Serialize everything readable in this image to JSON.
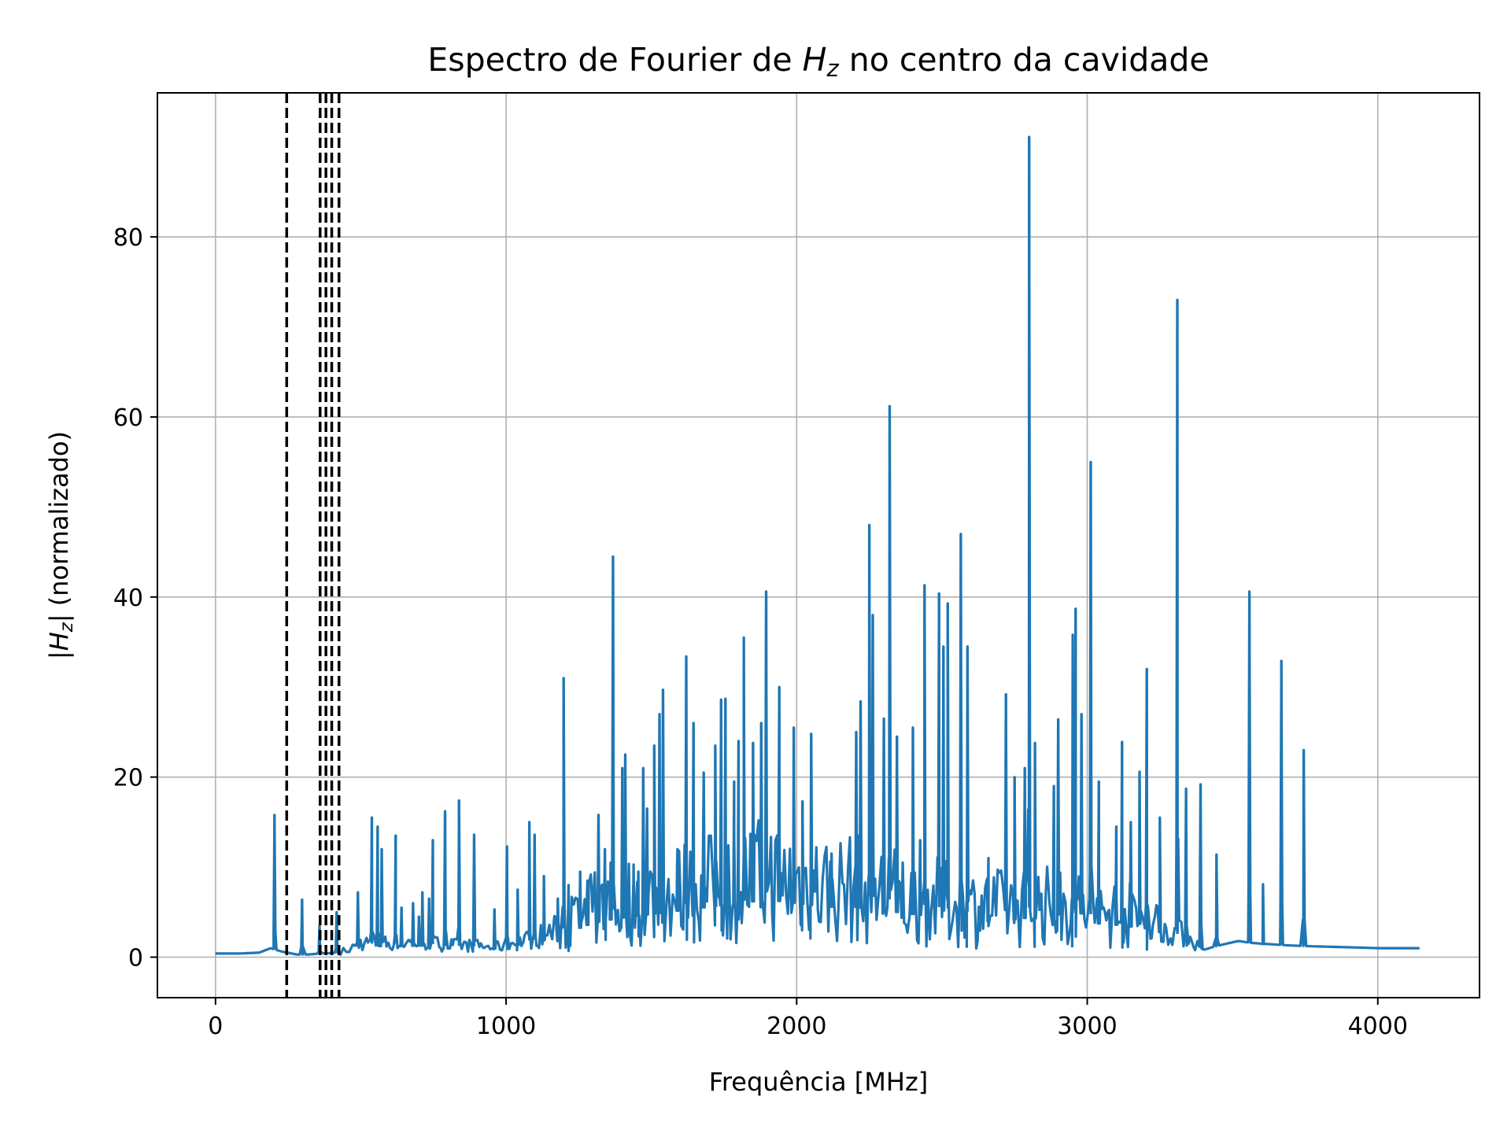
{
  "chart_data": {
    "type": "line",
    "title": "Espectro de Fourier de Hz no centro da cavidade",
    "title_parts": {
      "before": "Espectro de Fourier de ",
      "symbol": "H",
      "subscript": "z",
      "after": " no centro da cavidade"
    },
    "xlabel": "Frequência [MHz]",
    "ylabel": "|Hz| (normalizado)",
    "ylabel_parts": {
      "before": "|",
      "symbol": "H",
      "subscript": "z",
      "after": "| (normalizado)"
    },
    "xlim": [
      -200,
      4350
    ],
    "ylim": [
      -4.5,
      96
    ],
    "xticks": [
      0,
      1000,
      2000,
      3000,
      4000
    ],
    "yticks": [
      0,
      20,
      40,
      60,
      80
    ],
    "grid": true,
    "line_color": "#1f77b4",
    "vline_color": "#000000",
    "vlines": [
      245,
      360,
      380,
      400,
      425
    ],
    "series": [
      {
        "baseline": [
          [
            0,
            0.4
          ],
          [
            80,
            0.4
          ],
          [
            150,
            0.5
          ],
          [
            190,
            1.0
          ],
          [
            230,
            0.6
          ],
          [
            280,
            0.3
          ],
          [
            320,
            0.3
          ],
          [
            360,
            0.4
          ],
          [
            420,
            0.5
          ],
          [
            460,
            0.8
          ],
          [
            500,
            1.5
          ],
          [
            600,
            1.5
          ],
          [
            700,
            1.6
          ],
          [
            800,
            1.3
          ],
          [
            900,
            1.2
          ],
          [
            950,
            1.0
          ],
          [
            1000,
            1.3
          ],
          [
            1100,
            2.0
          ],
          [
            1150,
            2.6
          ],
          [
            1200,
            3.2
          ],
          [
            1250,
            4.0
          ],
          [
            1300,
            4.8
          ],
          [
            1400,
            5.5
          ],
          [
            1500,
            6.0
          ],
          [
            1600,
            6.5
          ],
          [
            1700,
            7.0
          ],
          [
            1800,
            7.5
          ],
          [
            1900,
            8.0
          ],
          [
            2000,
            7.5
          ],
          [
            2100,
            7.0
          ],
          [
            2200,
            7.0
          ],
          [
            2300,
            6.5
          ],
          [
            2400,
            6.0
          ],
          [
            2500,
            5.5
          ],
          [
            2600,
            5.0
          ],
          [
            2700,
            5.0
          ],
          [
            2800,
            5.5
          ],
          [
            2900,
            5.0
          ],
          [
            3000,
            4.8
          ],
          [
            3100,
            4.5
          ],
          [
            3200,
            4.0
          ],
          [
            3260,
            3.0
          ],
          [
            3320,
            2.5
          ],
          [
            3360,
            1.8
          ],
          [
            3400,
            0.8
          ],
          [
            3440,
            1.2
          ],
          [
            3480,
            1.5
          ],
          [
            3520,
            1.8
          ],
          [
            3560,
            1.6
          ],
          [
            3600,
            1.5
          ],
          [
            3650,
            1.4
          ],
          [
            3700,
            1.3
          ],
          [
            3780,
            1.2
          ],
          [
            3900,
            1.1
          ],
          [
            4000,
            1.0
          ],
          [
            4150,
            1.0
          ]
        ],
        "peaks": [
          [
            203,
            15.8
          ],
          [
            298,
            6.4
          ],
          [
            358,
            3.5
          ],
          [
            417,
            5.0
          ],
          [
            490,
            7.2
          ],
          [
            538,
            15.5
          ],
          [
            558,
            14.5
          ],
          [
            572,
            12.0
          ],
          [
            620,
            13.5
          ],
          [
            640,
            5.5
          ],
          [
            680,
            6.0
          ],
          [
            700,
            4.5
          ],
          [
            712,
            7.2
          ],
          [
            735,
            6.5
          ],
          [
            748,
            13.0
          ],
          [
            790,
            16.2
          ],
          [
            838,
            17.4
          ],
          [
            890,
            13.6
          ],
          [
            960,
            5.3
          ],
          [
            1003,
            12.3
          ],
          [
            1040,
            7.5
          ],
          [
            1080,
            15.0
          ],
          [
            1098,
            13.6
          ],
          [
            1130,
            9.0
          ],
          [
            1178,
            6.5
          ],
          [
            1198,
            31.0
          ],
          [
            1215,
            8.0
          ],
          [
            1255,
            9.5
          ],
          [
            1280,
            8.5
          ],
          [
            1318,
            15.8
          ],
          [
            1340,
            12.0
          ],
          [
            1360,
            10.5
          ],
          [
            1368,
            44.5
          ],
          [
            1400,
            21.0
          ],
          [
            1410,
            22.5
          ],
          [
            1438,
            8.0
          ],
          [
            1455,
            9.5
          ],
          [
            1472,
            21.0
          ],
          [
            1485,
            16.5
          ],
          [
            1510,
            23.5
          ],
          [
            1528,
            27.0
          ],
          [
            1540,
            29.7
          ],
          [
            1590,
            12.0
          ],
          [
            1620,
            33.4
          ],
          [
            1645,
            26.0
          ],
          [
            1680,
            20.5
          ],
          [
            1720,
            23.5
          ],
          [
            1740,
            28.6
          ],
          [
            1755,
            28.7
          ],
          [
            1785,
            19.5
          ],
          [
            1800,
            24.0
          ],
          [
            1818,
            35.5
          ],
          [
            1850,
            23.8
          ],
          [
            1878,
            26.0
          ],
          [
            1895,
            40.6
          ],
          [
            1940,
            30.0
          ],
          [
            1990,
            25.5
          ],
          [
            2020,
            17.3
          ],
          [
            2050,
            24.8
          ],
          [
            2120,
            11.5
          ],
          [
            2205,
            25.0
          ],
          [
            2220,
            28.4
          ],
          [
            2250,
            48.0
          ],
          [
            2262,
            38.0
          ],
          [
            2300,
            26.5
          ],
          [
            2320,
            61.2
          ],
          [
            2345,
            24.5
          ],
          [
            2400,
            25.5
          ],
          [
            2425,
            13.0
          ],
          [
            2440,
            41.3
          ],
          [
            2490,
            40.4
          ],
          [
            2505,
            34.5
          ],
          [
            2520,
            39.3
          ],
          [
            2565,
            47.0
          ],
          [
            2588,
            34.5
          ],
          [
            2660,
            11.0
          ],
          [
            2720,
            29.2
          ],
          [
            2750,
            20.0
          ],
          [
            2785,
            21.0
          ],
          [
            2800,
            91.1
          ],
          [
            2820,
            23.8
          ],
          [
            2885,
            19.0
          ],
          [
            2900,
            26.4
          ],
          [
            2950,
            35.8
          ],
          [
            2960,
            38.7
          ],
          [
            2980,
            27.0
          ],
          [
            3012,
            55.0
          ],
          [
            3040,
            19.5
          ],
          [
            3100,
            14.5
          ],
          [
            3120,
            23.9
          ],
          [
            3150,
            15.0
          ],
          [
            3180,
            20.6
          ],
          [
            3205,
            32.0
          ],
          [
            3250,
            15.5
          ],
          [
            3310,
            73.0
          ],
          [
            3340,
            18.7
          ],
          [
            3390,
            19.2
          ],
          [
            3445,
            11.4
          ],
          [
            3558,
            40.6
          ],
          [
            3605,
            8.1
          ],
          [
            3668,
            32.9
          ],
          [
            3745,
            23.0
          ]
        ]
      }
    ]
  }
}
